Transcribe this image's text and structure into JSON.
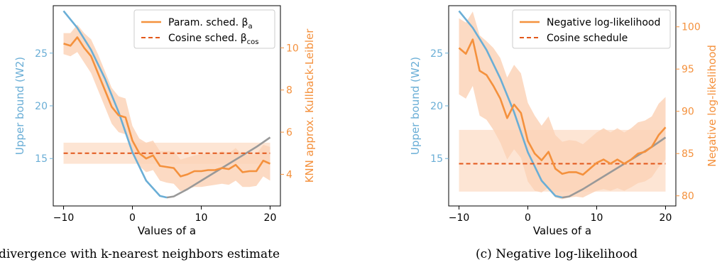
{
  "colors": {
    "blue": "#6aaed6",
    "gray": "#999999",
    "orange": "#f4913d",
    "dark_orange": "#e2571a",
    "band": "#fbd3b8"
  },
  "captions": {
    "left": "divergence with k-nearest neighbors estimate",
    "right": "(c) Negative log-likelihood"
  },
  "chart_data": [
    {
      "type": "line",
      "xlabel": "Values of a",
      "ylabel_left": "Upper bound (W2)",
      "ylabel_right": "KNN approx. Kullback-Leibler",
      "xlim": [
        -11.5,
        21.5
      ],
      "ylim_left": [
        10.5,
        29.5
      ],
      "ylim_right": [
        2.5,
        12.0
      ],
      "xticks": [
        -10,
        0,
        10,
        20
      ],
      "yticks_left": [
        15,
        20,
        25
      ],
      "yticks_right": [
        4,
        6,
        8,
        10
      ],
      "legend": {
        "position": "top-right",
        "entries": [
          "Param. sched. β_a",
          "Cosine sched. β_cos"
        ]
      },
      "bound_series": {
        "x": [
          -10,
          -8,
          -6,
          -4,
          -2,
          0,
          2,
          4,
          5,
          6,
          8,
          10,
          12,
          14,
          16,
          18,
          20
        ],
        "y": [
          29.0,
          27.4,
          25.3,
          22.6,
          19.4,
          15.6,
          12.9,
          11.45,
          11.3,
          11.4,
          12.1,
          12.9,
          13.7,
          14.5,
          15.3,
          16.1,
          17.0
        ],
        "optimum_x": 5
      },
      "series": [
        {
          "name": "Param. sched. β_a",
          "style": "solid",
          "x": [
            -10,
            -9,
            -8,
            -7,
            -6,
            -5,
            -4,
            -3,
            -2,
            -1,
            0,
            1,
            2,
            3,
            4,
            5,
            6,
            7,
            8,
            9,
            10,
            11,
            12,
            13,
            14,
            15,
            16,
            17,
            18,
            19,
            20
          ],
          "y": [
            10.2,
            10.1,
            10.5,
            10.0,
            9.6,
            8.8,
            8.0,
            7.2,
            6.8,
            6.7,
            5.6,
            5.0,
            4.75,
            4.9,
            4.4,
            4.35,
            4.3,
            3.9,
            4.0,
            4.15,
            4.15,
            4.2,
            4.2,
            4.3,
            4.25,
            4.45,
            4.1,
            4.15,
            4.15,
            4.65,
            4.5
          ],
          "lower": [
            9.7,
            9.6,
            9.8,
            9.3,
            8.8,
            8.0,
            7.2,
            6.4,
            6.0,
            5.9,
            5.0,
            4.4,
            4.1,
            4.2,
            3.7,
            3.6,
            3.55,
            3.2,
            3.3,
            3.4,
            3.4,
            3.45,
            3.5,
            3.55,
            3.5,
            3.7,
            3.4,
            3.4,
            3.45,
            3.9,
            3.7
          ],
          "upper": [
            10.7,
            10.7,
            11.1,
            10.7,
            10.4,
            9.7,
            8.9,
            8.1,
            7.7,
            7.6,
            6.3,
            5.7,
            5.5,
            5.6,
            5.1,
            5.1,
            5.1,
            4.7,
            4.8,
            4.9,
            4.95,
            5.0,
            4.95,
            5.1,
            5.0,
            5.25,
            4.9,
            4.95,
            4.95,
            5.4,
            5.3
          ]
        },
        {
          "name": "Cosine sched. β_cos",
          "style": "dashed",
          "x": [
            -10,
            20
          ],
          "y": [
            5.0,
            5.0
          ],
          "lower": [
            4.5,
            4.5
          ],
          "upper": [
            5.5,
            5.5
          ]
        }
      ]
    },
    {
      "type": "line",
      "xlabel": "Values of a",
      "ylabel_left": "Upper bound (W2)",
      "ylabel_right": "Negative log-likelihood",
      "xlim": [
        -11.5,
        21.5
      ],
      "ylim_left": [
        10.5,
        29.5
      ],
      "ylim_right": [
        78.8,
        102.5
      ],
      "xticks": [
        -10,
        0,
        10,
        20
      ],
      "yticks_left": [
        15,
        20,
        25
      ],
      "yticks_right": [
        80,
        85,
        90,
        95,
        100
      ],
      "legend": {
        "position": "top-right",
        "entries": [
          "Negative log-likelihood",
          "Cosine schedule"
        ]
      },
      "bound_series": {
        "x": [
          -10,
          -8,
          -6,
          -4,
          -2,
          0,
          2,
          4,
          5,
          6,
          8,
          10,
          12,
          14,
          16,
          18,
          20
        ],
        "y": [
          29.0,
          27.4,
          25.3,
          22.6,
          19.4,
          15.6,
          12.9,
          11.45,
          11.3,
          11.4,
          12.1,
          12.9,
          13.7,
          14.5,
          15.3,
          16.1,
          17.0
        ],
        "optimum_x": 5
      },
      "series": [
        {
          "name": "Negative log-likelihood",
          "style": "solid",
          "x": [
            -10,
            -9,
            -8,
            -7,
            -6,
            -5,
            -4,
            -3,
            -2,
            -1,
            0,
            1,
            2,
            3,
            4,
            5,
            6,
            7,
            8,
            9,
            10,
            11,
            12,
            13,
            14,
            15,
            16,
            17,
            18,
            19,
            20
          ],
          "y": [
            97.5,
            96.8,
            98.5,
            94.8,
            94.3,
            93.0,
            91.5,
            89.2,
            90.8,
            89.8,
            86.5,
            85.0,
            84.2,
            85.2,
            83.2,
            82.6,
            82.8,
            82.8,
            82.5,
            83.2,
            83.9,
            84.3,
            83.8,
            84.3,
            83.8,
            84.3,
            85.0,
            85.2,
            85.8,
            87.2,
            88.1
          ],
          "lower": [
            92.0,
            91.5,
            93.0,
            89.5,
            89.0,
            87.8,
            86.3,
            84.3,
            85.5,
            84.5,
            81.7,
            80.6,
            80.4,
            81.0,
            79.8,
            79.6,
            79.8,
            79.9,
            79.8,
            80.2,
            80.6,
            80.8,
            80.6,
            80.9,
            80.6,
            81.0,
            81.5,
            81.7,
            82.2,
            83.4,
            84.3
          ],
          "upper": [
            101.0,
            100.5,
            101.8,
            99.0,
            98.3,
            97.5,
            96.3,
            94.0,
            95.5,
            94.5,
            91.0,
            89.5,
            88.3,
            89.4,
            87.2,
            86.4,
            86.6,
            86.5,
            86.1,
            86.8,
            87.5,
            88.0,
            87.5,
            88.0,
            87.5,
            88.0,
            88.7,
            88.9,
            89.4,
            90.9,
            91.7
          ]
        },
        {
          "name": "Cosine schedule",
          "style": "dashed",
          "x": [
            -10,
            20
          ],
          "y": [
            83.8,
            83.8
          ],
          "lower": [
            80.5,
            80.5
          ],
          "upper": [
            87.8,
            87.8
          ]
        }
      ]
    }
  ]
}
